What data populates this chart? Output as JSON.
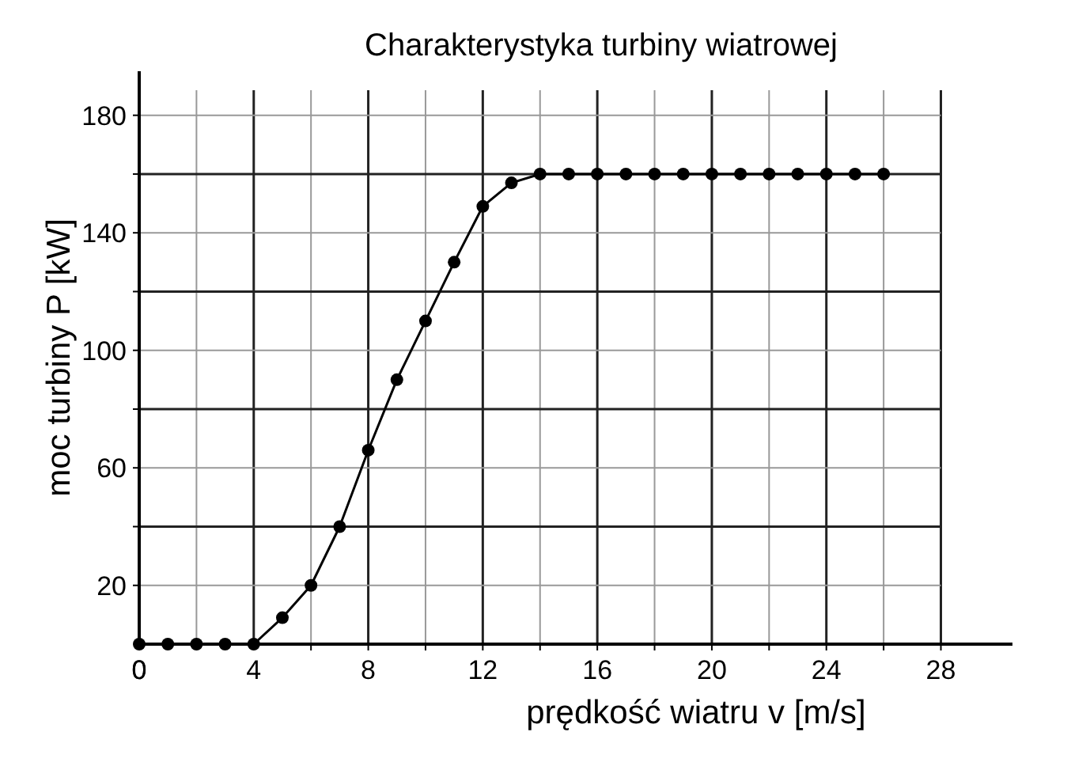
{
  "chart_data": {
    "type": "line",
    "title": "Charakterystyka turbiny wiatrowej",
    "xlabel": "prędkość wiatru v [m/s]",
    "ylabel": "moc turbiny P [kW]",
    "x": [
      0,
      1,
      2,
      3,
      4,
      5,
      6,
      7,
      8,
      9,
      10,
      11,
      12,
      13,
      14,
      15,
      16,
      17,
      18,
      19,
      20,
      21,
      22,
      23,
      24,
      25,
      26
    ],
    "series": [
      {
        "color": "#000000",
        "values": [
          0,
          0,
          0,
          0,
          0,
          9,
          20,
          40,
          66,
          90,
          110,
          130,
          149,
          157,
          160,
          160,
          160,
          160,
          160,
          160,
          160,
          160,
          160,
          160,
          160,
          160,
          160
        ]
      }
    ],
    "xlim": [
      0,
      30.5
    ],
    "ylim": [
      0,
      195
    ],
    "xticks": [
      0,
      {
        "value": 2,
        "label": null
      },
      4,
      {
        "value": 6,
        "label": null
      },
      8,
      {
        "value": 10,
        "label": null
      },
      12,
      {
        "value": 14,
        "label": null
      },
      16,
      {
        "value": 18,
        "label": null
      },
      20,
      {
        "value": 22,
        "label": null
      },
      24,
      {
        "value": 26,
        "label": null
      },
      28
    ],
    "yticks": [
      20,
      {
        "value": 40,
        "label": null
      },
      60,
      {
        "value": 80,
        "label": null
      },
      100,
      {
        "value": 120,
        "label": null
      },
      140,
      {
        "value": 160,
        "label": null
      },
      180
    ],
    "grid": true,
    "marker": "circle",
    "line_style": "solid"
  }
}
